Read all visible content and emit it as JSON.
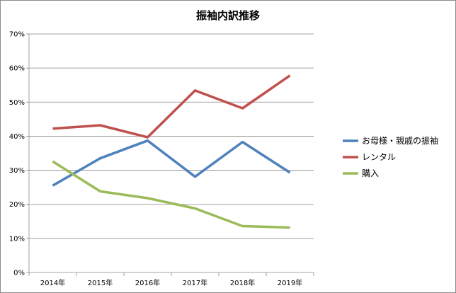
{
  "chart_data": {
    "type": "line",
    "title": "振袖内訳推移",
    "categories": [
      "2014年",
      "2015年",
      "2016年",
      "2017年",
      "2018年",
      "2019年"
    ],
    "ylim": [
      0,
      70
    ],
    "yticks": [
      "0%",
      "10%",
      "20%",
      "30%",
      "40%",
      "50%",
      "60%",
      "70%"
    ],
    "grid": true,
    "legend_position": "right",
    "series": [
      {
        "name": "お母様・親戚の振袖",
        "color": "#4f81bd",
        "values": [
          25.5,
          33.5,
          38.7,
          28.1,
          38.3,
          29.3
        ]
      },
      {
        "name": "レンタル",
        "color": "#c0504d",
        "values": [
          42.2,
          43.2,
          39.7,
          53.4,
          48.2,
          57.8
        ]
      },
      {
        "name": "購入",
        "color": "#9bbb59",
        "values": [
          32.6,
          23.8,
          21.8,
          18.8,
          13.6,
          13.2
        ]
      }
    ]
  }
}
